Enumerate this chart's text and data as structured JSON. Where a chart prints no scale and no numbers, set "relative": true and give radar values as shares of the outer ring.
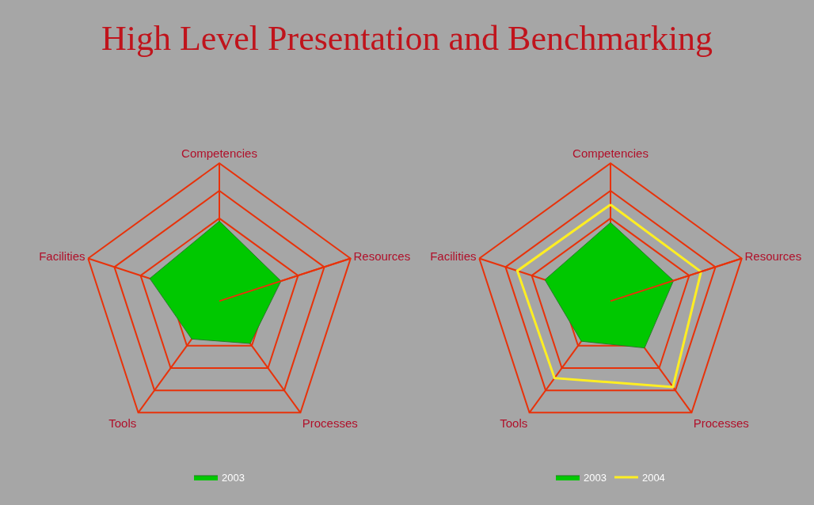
{
  "chart_data": [
    {
      "type": "radar",
      "title": "High Level Presentation and Benchmarking",
      "relative": true,
      "legend": "bottom",
      "grid": true,
      "categories": [
        "Competencies",
        "Resources",
        "Processes",
        "Tools",
        "Facilities"
      ],
      "series": [
        {
          "name": "2003",
          "type": "area",
          "color": "#00c800",
          "values": [
            0.58,
            0.47,
            0.38,
            0.34,
            0.53
          ]
        }
      ]
    },
    {
      "type": "radar",
      "relative": true,
      "legend": "bottom",
      "grid": true,
      "categories": [
        "Competencies",
        "Resources",
        "Processes",
        "Tools",
        "Facilities"
      ],
      "series": [
        {
          "name": "2003",
          "type": "area",
          "color": "#00c800",
          "values": [
            0.57,
            0.48,
            0.42,
            0.36,
            0.5
          ]
        },
        {
          "name": "2004",
          "color": "#ffee22",
          "values": [
            0.7,
            0.69,
            0.77,
            0.69,
            0.71
          ]
        }
      ]
    }
  ]
}
